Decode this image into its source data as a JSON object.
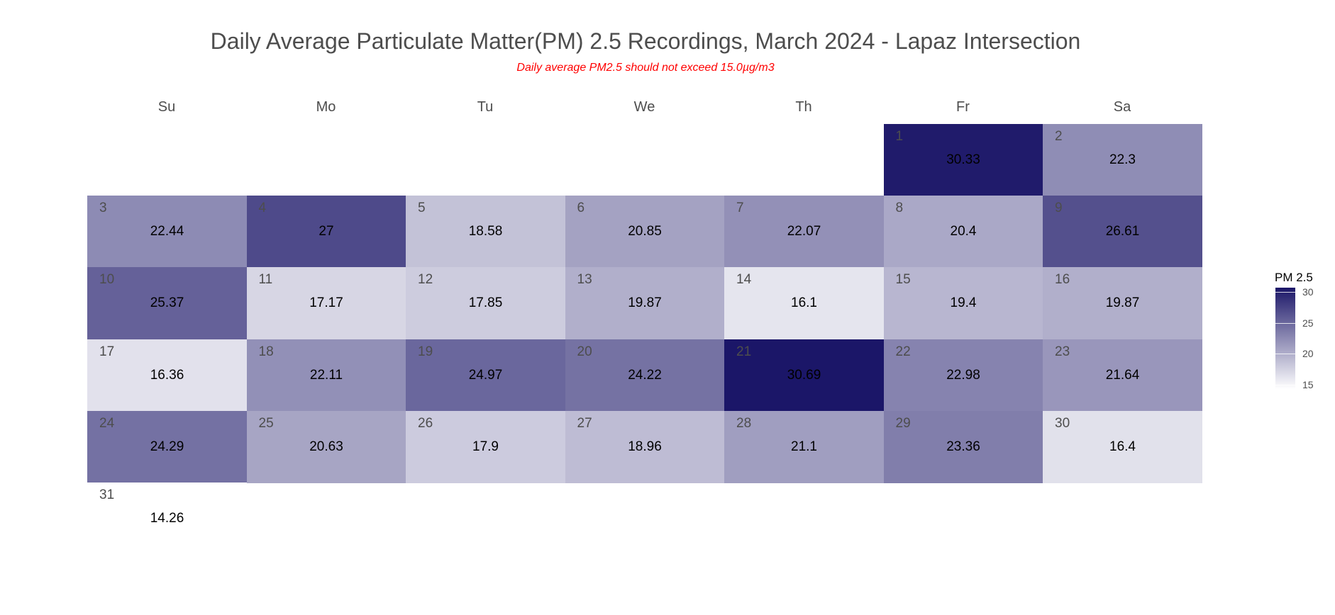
{
  "title": "Daily Average Particulate Matter(PM) 2.5 Recordings, March 2024 - Lapaz Intersection",
  "subtitle": "Daily average PM2.5 should not exceed 15.0µg/m3",
  "weekdays": [
    "Su",
    "Mo",
    "Tu",
    "We",
    "Th",
    "Fr",
    "Sa"
  ],
  "legend": {
    "title": "PM 2.5",
    "ticks": [
      "30",
      "25",
      "20",
      "15"
    ],
    "tick_values": [
      30,
      25,
      20,
      15
    ],
    "range": [
      14.26,
      30.69
    ],
    "color_low": "#ffffff",
    "color_high": "#1b1668"
  },
  "chart_data": {
    "type": "heatmap",
    "title": "Daily Average Particulate Matter(PM) 2.5 Recordings, March 2024 - Lapaz Intersection",
    "subtitle": "Daily average PM2.5 should not exceed 15.0µg/m3",
    "month": "March 2024",
    "first_weekday_index": 5,
    "series": [
      {
        "name": "PM 2.5",
        "days": [
          1,
          2,
          3,
          4,
          5,
          6,
          7,
          8,
          9,
          10,
          11,
          12,
          13,
          14,
          15,
          16,
          17,
          18,
          19,
          20,
          21,
          22,
          23,
          24,
          25,
          26,
          27,
          28,
          29,
          30,
          31
        ],
        "labels": [
          "30.33",
          "22.3",
          "22.44",
          "27",
          "18.58",
          "20.85",
          "22.07",
          "20.4",
          "26.61",
          "25.37",
          "17.17",
          "17.85",
          "19.87",
          "16.1",
          "19.4",
          "19.87",
          "16.36",
          "22.11",
          "24.97",
          "24.22",
          "30.69",
          "22.98",
          "21.64",
          "24.29",
          "20.63",
          "17.9",
          "18.96",
          "21.1",
          "23.36",
          "16.4",
          "14.26"
        ],
        "values": [
          30.33,
          22.3,
          22.44,
          27,
          18.58,
          20.85,
          22.07,
          20.4,
          26.61,
          25.37,
          17.17,
          17.85,
          19.87,
          16.1,
          19.4,
          19.87,
          16.36,
          22.11,
          24.97,
          24.22,
          30.69,
          22.98,
          21.64,
          24.29,
          20.63,
          17.9,
          18.96,
          21.1,
          23.36,
          16.4,
          14.26
        ]
      }
    ]
  }
}
